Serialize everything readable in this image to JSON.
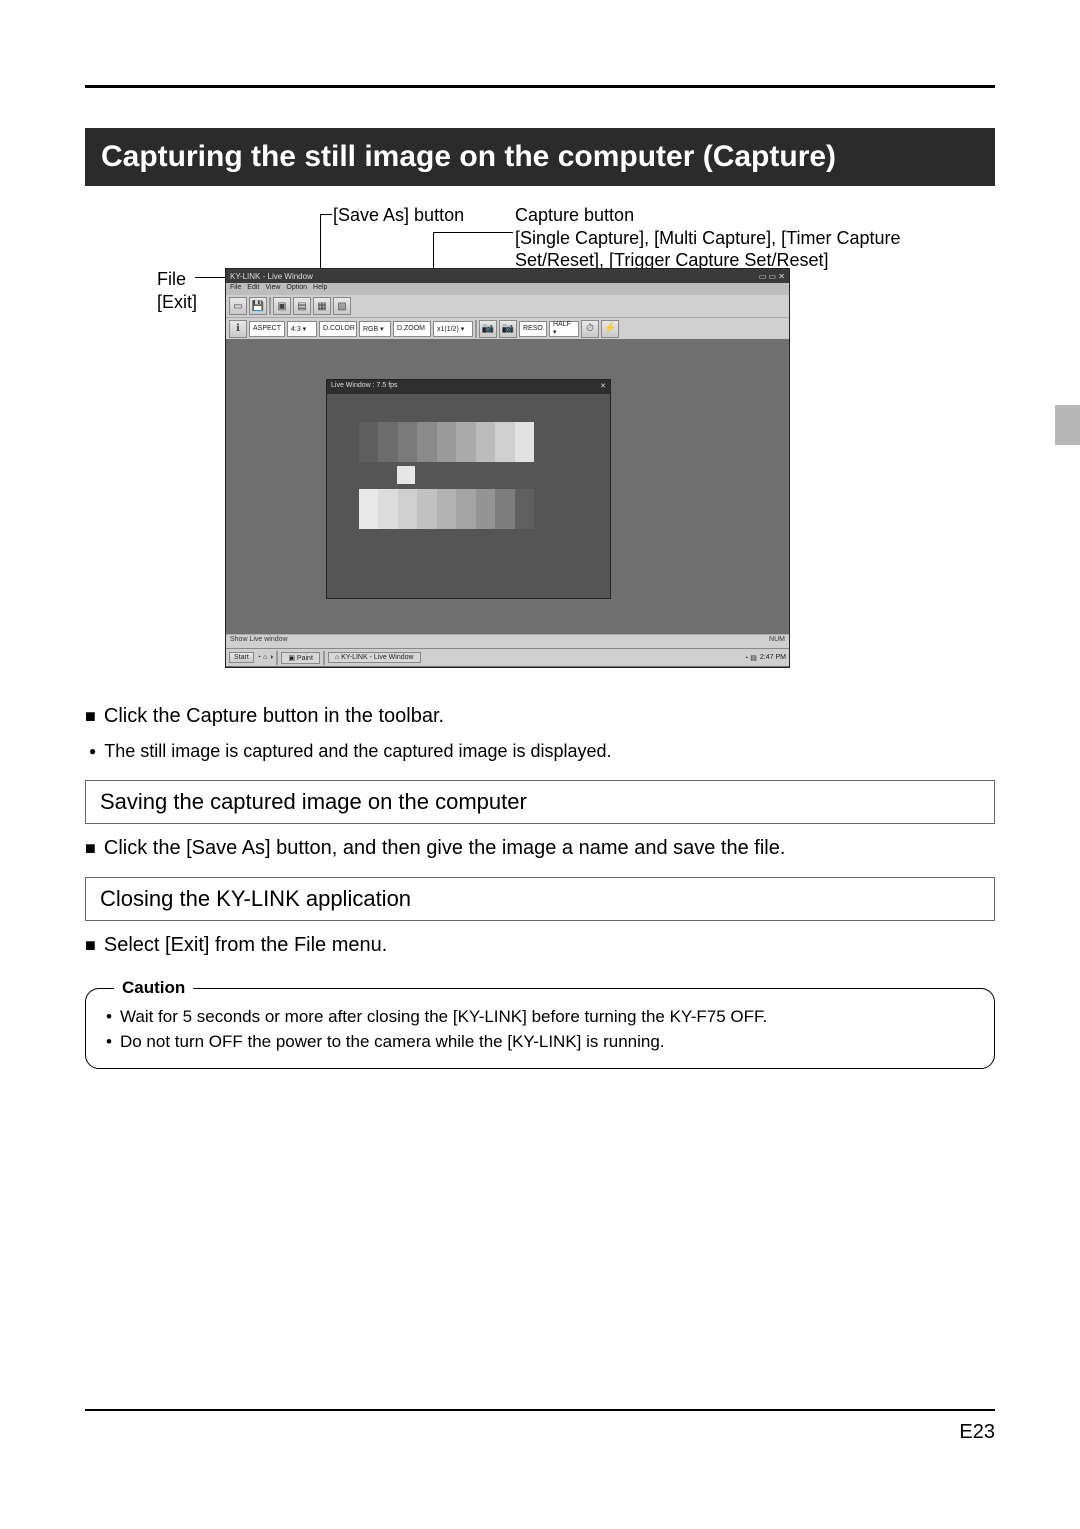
{
  "title": "Capturing the still image on the computer (Capture)",
  "callouts": {
    "save_as": "[Save As] button",
    "capture_btn": "Capture button",
    "capture_sub1": "[Single Capture], [Multi Capture], [Timer Capture",
    "capture_sub2": "Set/Reset], [Trigger Capture Set/Reset]",
    "file": "File",
    "exit": "[Exit]"
  },
  "screenshot": {
    "title": "KY-LINK - Live Window",
    "win_ctrl": "▭ ▭ ✕",
    "menu": [
      "File",
      "Edit",
      "View",
      "Option",
      "Help"
    ],
    "toolbar2": {
      "aspect": "ASPECT",
      "aspect_val": "4:3  ▾",
      "dcolor": "D.COLOR",
      "dcolor_val": "RGB ▾",
      "zoom": "D.ZOOM",
      "zoom_val": "x1(1/2) ▾",
      "reso": "RESO.",
      "reso_val": "HALF ▾"
    },
    "live": {
      "title": "Live Window : 7.5 fps",
      "bars1_colors": [
        "#5e5e5e",
        "#6c6c6c",
        "#7a7a7a",
        "#8a8a8a",
        "#9a9a9a",
        "#aaaaaa",
        "#bcbcbc",
        "#cfcfcf",
        "#e2e2e2"
      ],
      "bars2_colors": [
        "#e8e8e8",
        "#dcdcdc",
        "#cfcfcf",
        "#c1c1c1",
        "#b3b3b3",
        "#a4a4a4",
        "#949494",
        "#7d7d7d",
        "#5f5f5f"
      ]
    },
    "status_left": "Show Live window",
    "status_right": "NUM",
    "taskbar": {
      "start": "Start",
      "ql": "◔ ⌂ ◑",
      "app1": "▣ Paint",
      "app2": "⌂ KY-LINK - Live Window",
      "tray": "◔ ▤",
      "clock": "2:47 PM"
    }
  },
  "steps": {
    "click_capture": "Click the Capture button in the toolbar.",
    "captured_note": "The still image is captured and the captured image is displayed."
  },
  "section_save": "Saving the captured image on the computer",
  "save_step": "Click the [Save As] button, and then give the image a name and save the file.",
  "section_close": "Closing the KY-LINK application",
  "close_step": "Select [Exit] from the File menu.",
  "caution": {
    "label": "Caution",
    "items": [
      "Wait for 5 seconds or more after closing the [KY-LINK] before turning the KY-F75 OFF.",
      "Do not turn OFF the power to the camera while the [KY-LINK] is running."
    ]
  },
  "page_number": "E23"
}
